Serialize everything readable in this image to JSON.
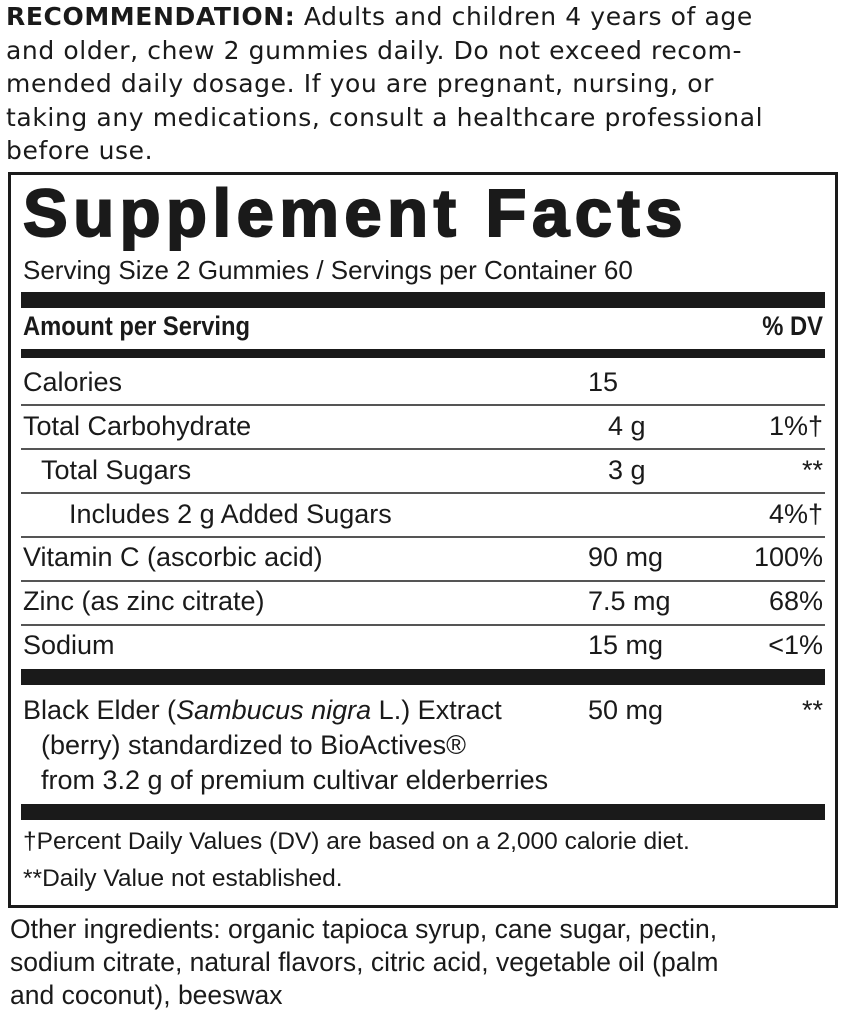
{
  "recommendation": {
    "label": "RECOMMENDATION:",
    "lines": [
      " Adults and children 4 years of age",
      "and older, chew 2 gummies daily. Do not exceed recom-",
      "mended daily dosage. If you are pregnant, nursing, or",
      "taking any medications, consult a healthcare professional",
      "before use."
    ]
  },
  "facts": {
    "title": "Supplement Facts",
    "serving": "Serving Size 2 Gummies / Servings per Container 60",
    "header_amount": "Amount per Serving",
    "header_dv": "% DV",
    "rows": [
      {
        "name": "Calories",
        "amount": "15",
        "dv": ""
      },
      {
        "name": "Total Carbohydrate",
        "amount": "4 g",
        "dv": "1%†"
      },
      {
        "name": "Total Sugars",
        "amount": "3 g",
        "dv": "**"
      },
      {
        "name": "Includes 2 g Added Sugars",
        "amount": "",
        "dv": "4%†"
      },
      {
        "name": "Vitamin C (ascorbic acid)",
        "amount": "90 mg",
        "dv": "100%"
      },
      {
        "name": "Zinc (as zinc citrate)",
        "amount": "7.5 mg",
        "dv": "68%"
      },
      {
        "name": "Sodium",
        "amount": "15 mg",
        "dv": "<1%"
      }
    ],
    "elder": {
      "name_pre": "Black Elder (",
      "name_italic": "Sambucus nigra",
      "name_post": " L.) Extract",
      "line2": "(berry) standardized to BioActives®",
      "line3": "from 3.2 g of premium cultivar elderberries",
      "amount": "50 mg",
      "dv": "**"
    },
    "footnote1": "†Percent Daily Values (DV) are based on a 2,000 calorie diet.",
    "footnote2": "**Daily Value not established."
  },
  "other": {
    "lines": [
      "Other ingredients: organic tapioca syrup, cane sugar, pectin,",
      "sodium citrate, natural flavors, citric acid, vegetable oil (palm",
      "and coconut), beeswax"
    ]
  }
}
